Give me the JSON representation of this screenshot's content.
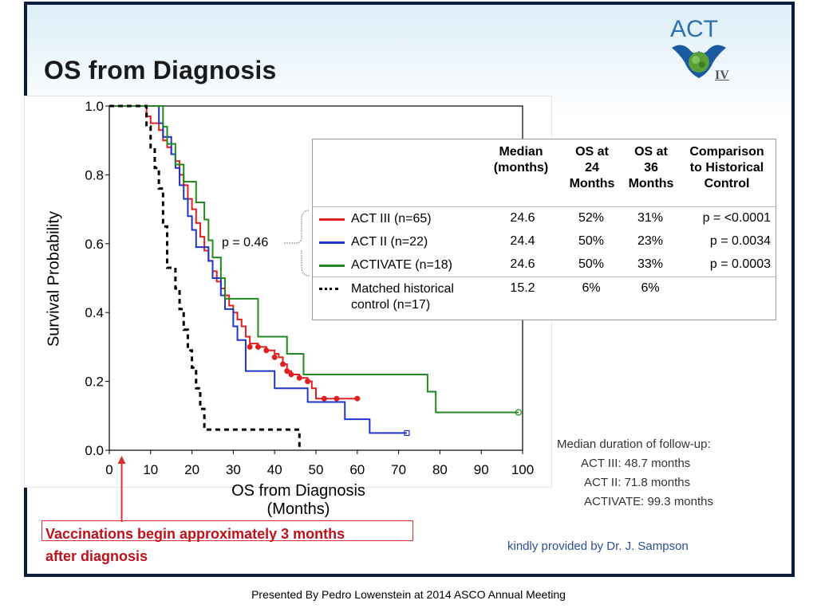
{
  "slide": {
    "title": "OS from Diagnosis",
    "logo_text": "ACT",
    "logo_numeral": "IV",
    "footer": "Presented By Pedro Lowenstein at 2014 ASCO Annual Meeting",
    "credit": "kindly provided by Dr. J. Sampson",
    "vaccination_note": [
      "Vaccinations begin approximately 3 months",
      "after diagnosis"
    ],
    "followup": {
      "title": "Median duration of follow-up:",
      "lines": [
        "ACT III: 48.7 months",
        "ACT II: 71.8 months",
        "ACTIVATE: 99.3 months"
      ]
    },
    "pvalue_note": "p = 0.46"
  },
  "table": {
    "headers": [
      "Median\n(months)",
      "OS at\n24\nMonths",
      "OS at\n36\nMonths",
      "Comparison\nto Historical\nControl"
    ],
    "rows": [
      {
        "label": "ACT III (n=65)",
        "color": "#e02020",
        "style": "solid",
        "median": "24.6",
        "os24": "52%",
        "os36": "31%",
        "comparison": "p = <0.0001"
      },
      {
        "label": "ACT II (n=22)",
        "color": "#1f35c8",
        "style": "solid",
        "median": "24.4",
        "os24": "50%",
        "os36": "23%",
        "comparison": "p = 0.0034"
      },
      {
        "label": "ACTIVATE (n=18)",
        "color": "#1f8a1f",
        "style": "solid",
        "median": "24.6",
        "os24": "50%",
        "os36": "33%",
        "comparison": "p = 0.0003"
      },
      {
        "label": "Matched historical\ncontrol (n=17)",
        "color": "#000000",
        "style": "dotted",
        "median": "15.2",
        "os24": "6%",
        "os36": "6%",
        "comparison": ""
      }
    ]
  },
  "chart_data": {
    "type": "line",
    "title": "",
    "xlabel": "OS from Diagnosis\n(Months)",
    "ylabel": "Survival Probability",
    "xlim": [
      0,
      100
    ],
    "ylim": [
      0.0,
      1.0
    ],
    "xticks": [
      0,
      10,
      20,
      30,
      40,
      50,
      60,
      70,
      80,
      90,
      100
    ],
    "yticks": [
      "0.0",
      "0.2",
      "0.4",
      "0.6",
      "0.8",
      "1.0"
    ],
    "step": true,
    "series": [
      {
        "name": "ACT III (n=65)",
        "color": "#e02020",
        "dash": "",
        "points": [
          [
            0,
            1.0
          ],
          [
            8,
            1.0
          ],
          [
            9,
            0.97
          ],
          [
            10,
            0.95
          ],
          [
            12,
            0.93
          ],
          [
            13,
            0.9
          ],
          [
            14,
            0.88
          ],
          [
            15,
            0.86
          ],
          [
            16,
            0.84
          ],
          [
            17,
            0.8
          ],
          [
            18,
            0.77
          ],
          [
            19,
            0.73
          ],
          [
            20,
            0.7
          ],
          [
            21,
            0.66
          ],
          [
            22,
            0.62
          ],
          [
            23,
            0.58
          ],
          [
            24,
            0.55
          ],
          [
            25,
            0.52
          ],
          [
            26,
            0.49
          ],
          [
            27,
            0.47
          ],
          [
            28,
            0.45
          ],
          [
            29,
            0.42
          ],
          [
            30,
            0.4
          ],
          [
            31,
            0.38
          ],
          [
            32,
            0.36
          ],
          [
            33,
            0.33
          ],
          [
            34,
            0.31
          ],
          [
            36,
            0.3
          ],
          [
            38,
            0.29
          ],
          [
            40,
            0.28
          ],
          [
            41,
            0.27
          ],
          [
            42,
            0.25
          ],
          [
            43,
            0.23
          ],
          [
            44,
            0.22
          ],
          [
            46,
            0.21
          ],
          [
            48,
            0.2
          ],
          [
            49,
            0.18
          ],
          [
            50,
            0.15
          ],
          [
            60,
            0.15
          ]
        ],
        "censored": [
          [
            34,
            0.3
          ],
          [
            36,
            0.3
          ],
          [
            38,
            0.29
          ],
          [
            40,
            0.27
          ],
          [
            42,
            0.25
          ],
          [
            43,
            0.23
          ],
          [
            44,
            0.22
          ],
          [
            46,
            0.21
          ],
          [
            48,
            0.2
          ],
          [
            52,
            0.15
          ],
          [
            55,
            0.15
          ],
          [
            60,
            0.15
          ]
        ]
      },
      {
        "name": "ACT II (n=22)",
        "color": "#1f35c8",
        "dash": "",
        "points": [
          [
            0,
            1.0
          ],
          [
            12,
            1.0
          ],
          [
            12,
            0.95
          ],
          [
            13,
            0.91
          ],
          [
            15,
            0.86
          ],
          [
            16,
            0.82
          ],
          [
            17,
            0.77
          ],
          [
            18,
            0.73
          ],
          [
            19,
            0.68
          ],
          [
            20,
            0.64
          ],
          [
            21,
            0.59
          ],
          [
            24,
            0.55
          ],
          [
            25,
            0.5
          ],
          [
            27,
            0.45
          ],
          [
            28,
            0.41
          ],
          [
            30,
            0.36
          ],
          [
            31,
            0.32
          ],
          [
            33,
            0.27
          ],
          [
            33,
            0.23
          ],
          [
            40,
            0.18
          ],
          [
            48,
            0.14
          ],
          [
            52,
            0.14
          ],
          [
            57,
            0.09
          ],
          [
            63,
            0.05
          ],
          [
            72,
            0.05
          ]
        ],
        "censored": [
          [
            72,
            0.05
          ]
        ]
      },
      {
        "name": "ACTIVATE (n=18)",
        "color": "#1f8a1f",
        "dash": "",
        "points": [
          [
            0,
            1.0
          ],
          [
            12,
            1.0
          ],
          [
            13,
            0.94
          ],
          [
            14,
            0.89
          ],
          [
            16,
            0.83
          ],
          [
            18,
            0.78
          ],
          [
            21,
            0.72
          ],
          [
            23,
            0.67
          ],
          [
            24,
            0.61
          ],
          [
            25,
            0.56
          ],
          [
            27,
            0.5
          ],
          [
            28,
            0.44
          ],
          [
            35,
            0.44
          ],
          [
            36,
            0.33
          ],
          [
            43,
            0.33
          ],
          [
            43,
            0.28
          ],
          [
            47,
            0.28
          ],
          [
            47,
            0.22
          ],
          [
            77,
            0.22
          ],
          [
            77,
            0.17
          ],
          [
            79,
            0.17
          ],
          [
            79,
            0.11
          ],
          [
            99,
            0.11
          ]
        ],
        "censored": [
          [
            99,
            0.11
          ]
        ]
      },
      {
        "name": "Matched historical control (n=17)",
        "color": "#000000",
        "dash": "6,5",
        "points": [
          [
            0,
            1.0
          ],
          [
            8,
            1.0
          ],
          [
            9,
            0.94
          ],
          [
            10,
            0.88
          ],
          [
            11,
            0.82
          ],
          [
            12,
            0.76
          ],
          [
            13,
            0.71
          ],
          [
            13,
            0.65
          ],
          [
            14,
            0.59
          ],
          [
            14,
            0.53
          ],
          [
            16,
            0.47
          ],
          [
            17,
            0.41
          ],
          [
            18,
            0.35
          ],
          [
            19,
            0.29
          ],
          [
            20,
            0.24
          ],
          [
            21,
            0.18
          ],
          [
            22,
            0.12
          ],
          [
            23,
            0.06
          ],
          [
            45,
            0.06
          ],
          [
            46,
            0.0
          ]
        ],
        "censored": []
      }
    ]
  }
}
